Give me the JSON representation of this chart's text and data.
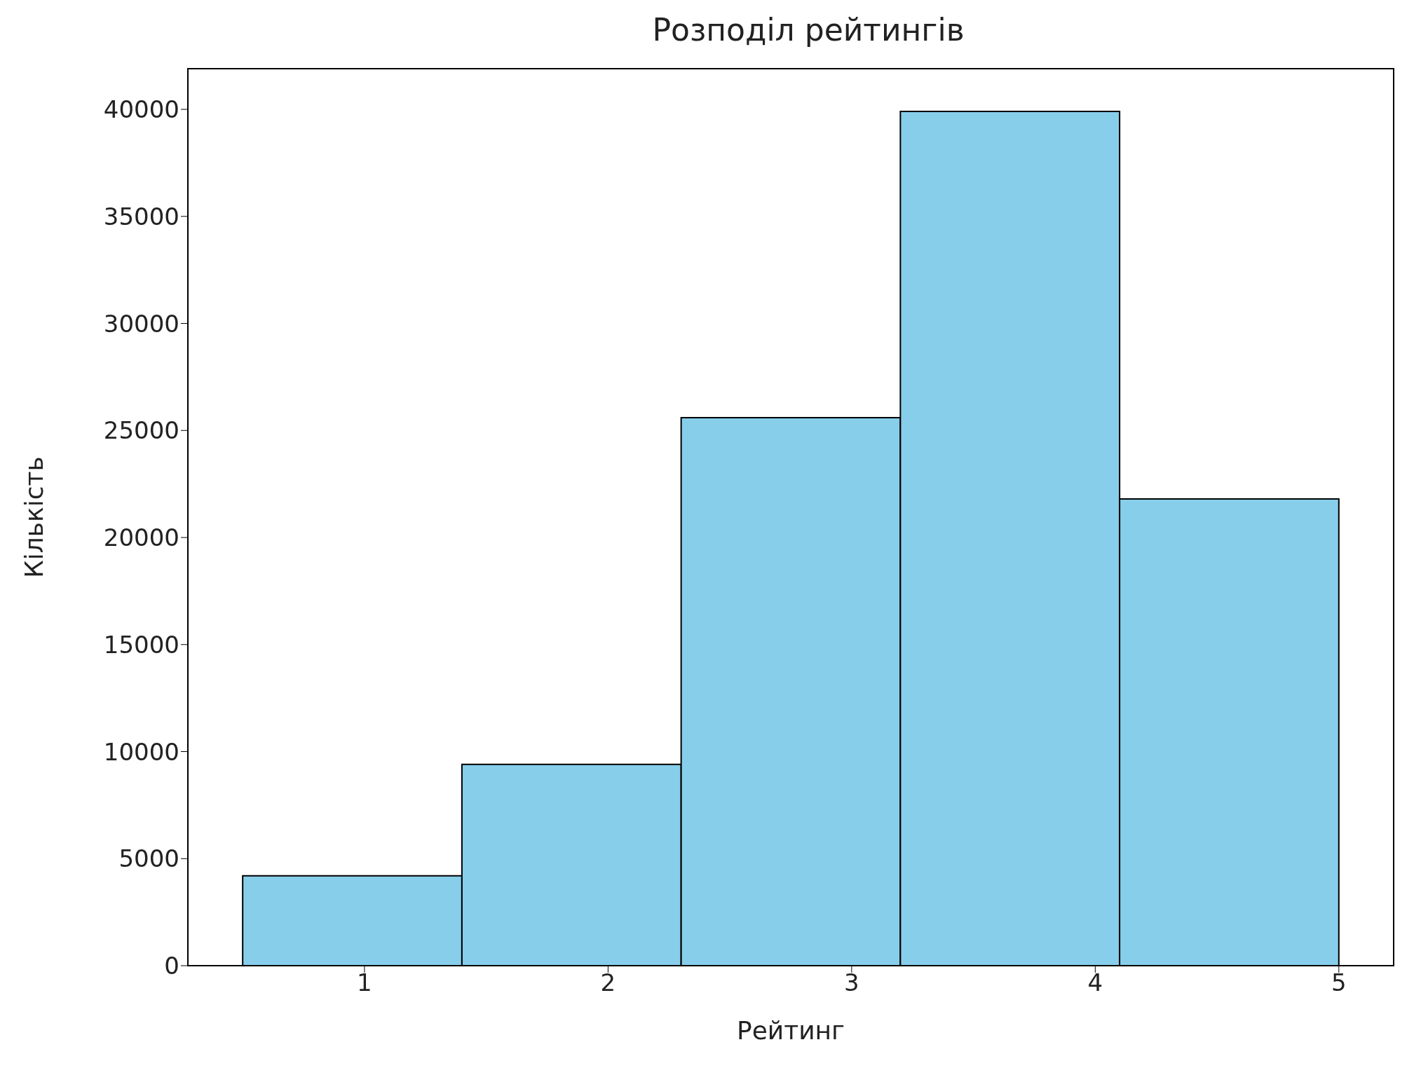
{
  "chart_data": {
    "type": "histogram",
    "title": "Розподіл рейтингів",
    "xlabel": "Рейтинг",
    "ylabel": "Кількість",
    "bins": [
      0.5,
      1.4,
      2.3,
      3.2,
      4.1,
      5.0
    ],
    "values": [
      4200,
      9400,
      25600,
      39900,
      21800
    ],
    "color": "#87ceeb",
    "xlim": [
      0.275,
      5.225
    ],
    "xticks": [
      1,
      2,
      3,
      4,
      5
    ],
    "ylim": [
      0,
      41900
    ],
    "yticks": [
      0,
      5000,
      10000,
      15000,
      20000,
      25000,
      30000,
      35000,
      40000
    ],
    "grid": false
  }
}
